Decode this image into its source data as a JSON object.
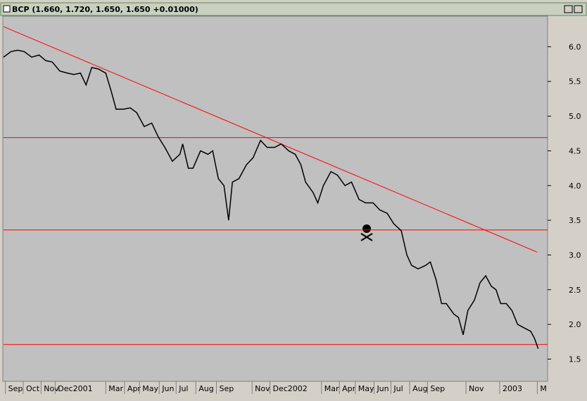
{
  "chart_data": {
    "type": "line",
    "title": "BCP (1.660, 1.720, 1.650, 1.650 +0.01000)",
    "x": [
      0,
      8,
      15,
      22,
      30,
      38,
      45,
      52,
      60,
      68,
      75,
      82,
      88,
      94,
      101,
      109,
      115,
      120,
      128,
      135,
      142,
      150,
      158,
      165,
      172,
      180,
      188,
      191,
      197,
      202,
      210,
      218,
      223,
      229,
      235,
      240,
      244,
      251,
      259,
      266,
      274,
      281,
      289,
      296,
      304,
      311,
      317,
      322,
      330,
      335,
      341,
      349,
      356,
      364,
      371,
      379,
      386,
      394,
      401,
      409,
      416,
      424,
      430,
      435,
      442,
      450,
      455,
      461,
      467,
      472,
      480,
      485,
      490,
      495,
      502,
      508,
      514,
      520,
      525,
      530,
      536,
      542,
      548,
      555,
      562,
      566,
      570
    ],
    "series": [
      {
        "name": "BCP",
        "color": "#000000",
        "values": [
          5.85,
          5.93,
          5.95,
          5.93,
          5.85,
          5.88,
          5.8,
          5.78,
          5.65,
          5.62,
          5.6,
          5.62,
          5.45,
          5.7,
          5.68,
          5.62,
          5.35,
          5.1,
          5.1,
          5.12,
          5.05,
          4.85,
          4.9,
          4.7,
          4.55,
          4.35,
          4.45,
          4.6,
          4.25,
          4.25,
          4.5,
          4.45,
          4.5,
          4.1,
          4.0,
          3.5,
          4.05,
          4.1,
          4.3,
          4.4,
          4.65,
          4.55,
          4.55,
          4.6,
          4.5,
          4.45,
          4.3,
          4.05,
          3.9,
          3.75,
          4.0,
          4.2,
          4.15,
          4.0,
          4.05,
          3.8,
          3.75,
          3.75,
          3.65,
          3.6,
          3.45,
          3.35,
          3.0,
          2.85,
          2.8,
          2.85,
          2.9,
          2.65,
          2.3,
          2.3,
          2.15,
          2.1,
          1.85,
          2.2,
          2.35,
          2.6,
          2.7,
          2.55,
          2.5,
          2.3,
          2.3,
          2.2,
          2.0,
          1.95,
          1.9,
          1.8,
          1.65
        ]
      }
    ],
    "trendline": {
      "color": "#ff0000",
      "x": [
        0,
        569
      ],
      "y": [
        6.29,
        3.04
      ]
    },
    "levels": {
      "color": "#ff0000",
      "values": [
        4.69,
        3.36,
        1.71
      ]
    },
    "xlim": [
      0,
      580
    ],
    "xticks": [
      {
        "value": 5,
        "label": "Sep"
      },
      {
        "value": 24,
        "label": "Oct"
      },
      {
        "value": 43,
        "label": "Nov"
      },
      {
        "value": 58,
        "label": "Dec2001"
      },
      {
        "value": 112,
        "label": "Mar"
      },
      {
        "value": 132,
        "label": "Apr"
      },
      {
        "value": 148,
        "label": "May"
      },
      {
        "value": 169,
        "label": "Jun"
      },
      {
        "value": 187,
        "label": "Jul"
      },
      {
        "value": 208,
        "label": "Aug"
      },
      {
        "value": 230,
        "label": "Sep"
      },
      {
        "value": 268,
        "label": "Nov"
      },
      {
        "value": 287,
        "label": "Dec2002"
      },
      {
        "value": 342,
        "label": "Mar"
      },
      {
        "value": 361,
        "label": "Apr"
      },
      {
        "value": 378,
        "label": "May"
      },
      {
        "value": 398,
        "label": "Jun"
      },
      {
        "value": 416,
        "label": "Jul"
      },
      {
        "value": 436,
        "label": "Aug"
      },
      {
        "value": 455,
        "label": "Sep"
      },
      {
        "value": 496,
        "label": "Nov"
      },
      {
        "value": 532,
        "label": "2003"
      },
      {
        "value": 572,
        "label": "M"
      }
    ],
    "ylim": [
      1.18,
      6.44
    ],
    "yticks": [
      1.5,
      {
        "value": 2,
        "label": "2.0"
      },
      2.5,
      {
        "value": 3,
        "label": "3.0"
      },
      3.5,
      {
        "value": 4,
        "label": "4.0"
      },
      4.5,
      {
        "value": 5,
        "label": "5.0"
      },
      5.5,
      {
        "value": 6,
        "label": "6.0"
      }
    ]
  }
}
